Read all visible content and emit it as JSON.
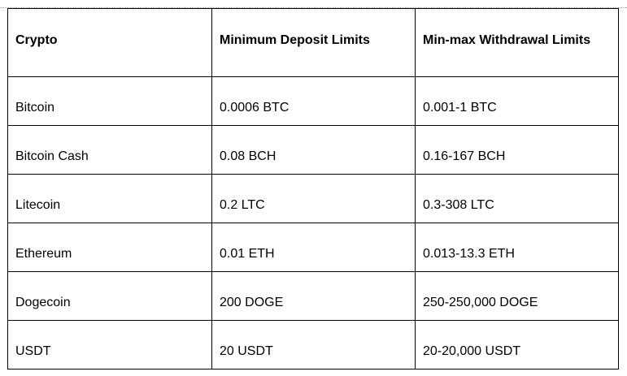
{
  "table": {
    "headers": [
      "Crypto",
      "Minimum Deposit Limits",
      "Min-max Withdrawal Limits"
    ],
    "rows": [
      [
        "Bitcoin",
        "0.0006 BTC",
        "0.001-1 BTC"
      ],
      [
        "Bitcoin Cash",
        "0.08 BCH",
        "0.16-167 BCH"
      ],
      [
        "Litecoin",
        "0.2 LTC",
        "0.3-308 LTC"
      ],
      [
        "Ethereum",
        "0.01 ETH",
        "0.013-13.3 ETH"
      ],
      [
        "Dogecoin",
        "200 DOGE",
        "250-250,000 DOGE"
      ],
      [
        "USDT",
        "20 USDT",
        "20-20,000 USDT"
      ]
    ]
  }
}
